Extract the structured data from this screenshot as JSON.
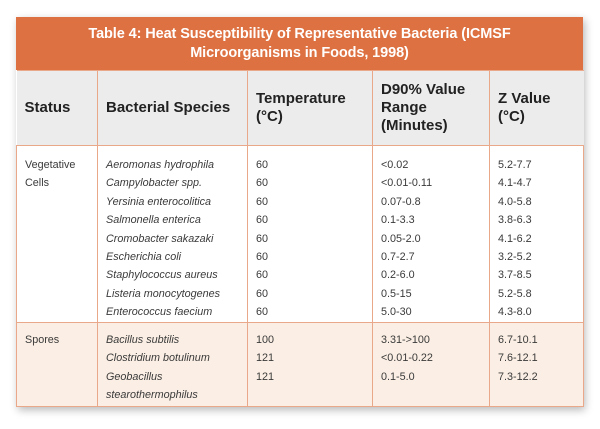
{
  "title": {
    "line1": "Table 4: Heat Susceptibility of Representative Bacteria (ICMSF",
    "line2": "Microorganisms in Foods, 1998)"
  },
  "colors": {
    "title_bg": "#de7141",
    "header_bg": "#ececec",
    "border": "#eaa88a",
    "spores_bg": "#fbeee4"
  },
  "columns": [
    "Status",
    "Bacterial Species",
    "Temperature (°C)",
    "D90% Value Range (Minutes)",
    "Z Value (°C)"
  ],
  "groups": [
    {
      "status": "Vegetative Cells",
      "rows": [
        {
          "species": "Aeromonas hydrophila",
          "temperature": "60",
          "d90": "<0.02",
          "z": "5.2-7.7"
        },
        {
          "species": "Campylobacter spp.",
          "temperature": "60",
          "d90": "<0.01-0.11",
          "z": "4.1-4.7"
        },
        {
          "species": "Yersinia enterocolitica",
          "temperature": "60",
          "d90": "0.07-0.8",
          "z": "4.0-5.8"
        },
        {
          "species": "Salmonella enterica",
          "temperature": "60",
          "d90": "0.1-3.3",
          "z": "3.8-6.3"
        },
        {
          "species": "Cromobacter sakazaki",
          "temperature": "60",
          "d90": "0.05-2.0",
          "z": "4.1-6.2"
        },
        {
          "species": "Escherichia coli",
          "temperature": "60",
          "d90": "0.7-2.7",
          "z": "3.2-5.2"
        },
        {
          "species": "Staphylococcus aureus",
          "temperature": "60",
          "d90": "0.2-6.0",
          "z": "3.7-8.5"
        },
        {
          "species": "Listeria monocytogenes",
          "temperature": "60",
          "d90": "0.5-15",
          "z": "5.2-5.8"
        },
        {
          "species": "Enterococcus faecium",
          "temperature": "60",
          "d90": "5.0-30",
          "z": "4.3-8.0"
        }
      ]
    },
    {
      "status": "Spores",
      "rows": [
        {
          "species": "Bacillus subtilis",
          "temperature": "100",
          "d90": "3.31->100",
          "z": "6.7-10.1"
        },
        {
          "species": "Clostridium botulinum",
          "temperature": "121",
          "d90": "<0.01-0.22",
          "z": "7.6-12.1"
        },
        {
          "species": "Geobacillus stearothermophilus",
          "temperature": "121",
          "d90": "0.1-5.0",
          "z": "7.3-12.2"
        }
      ]
    }
  ],
  "chart_data": {
    "type": "table",
    "title": "Table 4: Heat Susceptibility of Representative Bacteria (ICMSF Microorganisms in Foods, 1998)",
    "columns": [
      "Status",
      "Bacterial Species",
      "Temperature (°C)",
      "D90% Value Range (Minutes)",
      "Z Value (°C)"
    ],
    "rows": [
      [
        "Vegetative Cells",
        "Aeromonas hydrophila",
        "60",
        "<0.02",
        "5.2-7.7"
      ],
      [
        "Vegetative Cells",
        "Campylobacter spp.",
        "60",
        "<0.01-0.11",
        "4.1-4.7"
      ],
      [
        "Vegetative Cells",
        "Yersinia enterocolitica",
        "60",
        "0.07-0.8",
        "4.0-5.8"
      ],
      [
        "Vegetative Cells",
        "Salmonella enterica",
        "60",
        "0.1-3.3",
        "3.8-6.3"
      ],
      [
        "Vegetative Cells",
        "Cromobacter sakazaki",
        "60",
        "0.05-2.0",
        "4.1-6.2"
      ],
      [
        "Vegetative Cells",
        "Escherichia coli",
        "60",
        "0.7-2.7",
        "3.2-5.2"
      ],
      [
        "Vegetative Cells",
        "Staphylococcus aureus",
        "60",
        "0.2-6.0",
        "3.7-8.5"
      ],
      [
        "Vegetative Cells",
        "Listeria monocytogenes",
        "60",
        "0.5-15",
        "5.2-5.8"
      ],
      [
        "Vegetative Cells",
        "Enterococcus faecium",
        "60",
        "5.0-30",
        "4.3-8.0"
      ],
      [
        "Spores",
        "Bacillus subtilis",
        "100",
        "3.31->100",
        "6.7-10.1"
      ],
      [
        "Spores",
        "Clostridium botulinum",
        "121",
        "<0.01-0.22",
        "7.6-12.1"
      ],
      [
        "Spores",
        "Geobacillus stearothermophilus",
        "121",
        "0.1-5.0",
        "7.3-12.2"
      ]
    ]
  }
}
